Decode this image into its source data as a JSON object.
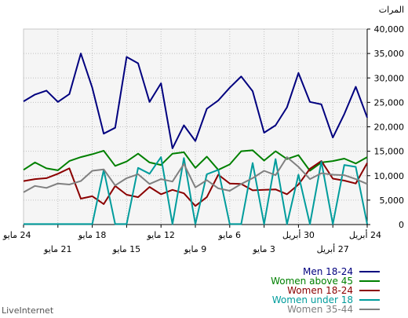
{
  "chart_data": {
    "type": "line",
    "ylabel": "المرات",
    "ylim": [
      0,
      40000
    ],
    "yticks": [
      "0",
      "5,000",
      "10,000",
      "15,000",
      "20,000",
      "25,000",
      "30,000",
      "35,000",
      "40,000"
    ],
    "x_tick_labels": [
      "24 أبريل",
      "27 أبريل",
      "30 أبريل",
      "3 مايو",
      "6 مايو",
      "9 مايو",
      "12 مايو",
      "15 مايو",
      "18 مايو",
      "21 مايو",
      "24 مايو"
    ],
    "x_order": "descending-dates-left-to-right",
    "grid": true,
    "legend_placement": "bottom-right",
    "series": [
      {
        "name": "Men 18-24",
        "color": "#00007f",
        "values": [
          25200,
          26600,
          27400,
          25100,
          26700,
          35000,
          28000,
          18600,
          19800,
          34300,
          33000,
          25100,
          28900,
          15600,
          20300,
          17100,
          23700,
          25400,
          28000,
          30300,
          27300,
          18800,
          20300,
          24000,
          31000,
          25100,
          24600,
          17800,
          22600,
          28200,
          21900
        ]
      },
      {
        "name": "Women above 45",
        "color": "#008000",
        "values": [
          11200,
          12700,
          11500,
          11100,
          13000,
          13800,
          14400,
          15100,
          12000,
          12900,
          14500,
          12700,
          12200,
          14500,
          14800,
          11600,
          13900,
          11200,
          12300,
          15000,
          15200,
          13100,
          15000,
          13400,
          14200,
          11000,
          12700,
          13000,
          13500,
          12500,
          13800
        ]
      },
      {
        "name": "Women 18-24",
        "color": "#8b0000",
        "values": [
          8900,
          9300,
          9500,
          10400,
          11500,
          5300,
          5800,
          4200,
          7900,
          6100,
          5600,
          7700,
          6200,
          7100,
          6400,
          3800,
          5600,
          10200,
          8400,
          8300,
          7000,
          7100,
          7200,
          6200,
          8200,
          11400,
          13000,
          9400,
          9000,
          8400,
          12600
        ]
      },
      {
        "name": "Women under 18",
        "color": "#009c9c",
        "values": [
          100,
          100,
          100,
          100,
          100,
          100,
          100,
          11200,
          100,
          100,
          11600,
          10400,
          13800,
          100,
          13600,
          100,
          10300,
          11200,
          100,
          100,
          12600,
          100,
          13400,
          100,
          10200,
          100,
          12900,
          100,
          12200,
          11800,
          100
        ]
      },
      {
        "name": "Women 35-44",
        "color": "#808080",
        "values": [
          6600,
          7900,
          7500,
          8400,
          8200,
          8900,
          11000,
          11300,
          8000,
          9500,
          10300,
          8300,
          9300,
          8800,
          12400,
          7600,
          9100,
          7400,
          6900,
          8300,
          9500,
          11000,
          10100,
          13800,
          11800,
          9300,
          10500,
          10200,
          10100,
          9300,
          8300
        ]
      }
    ]
  },
  "brand": "LiveInternet"
}
